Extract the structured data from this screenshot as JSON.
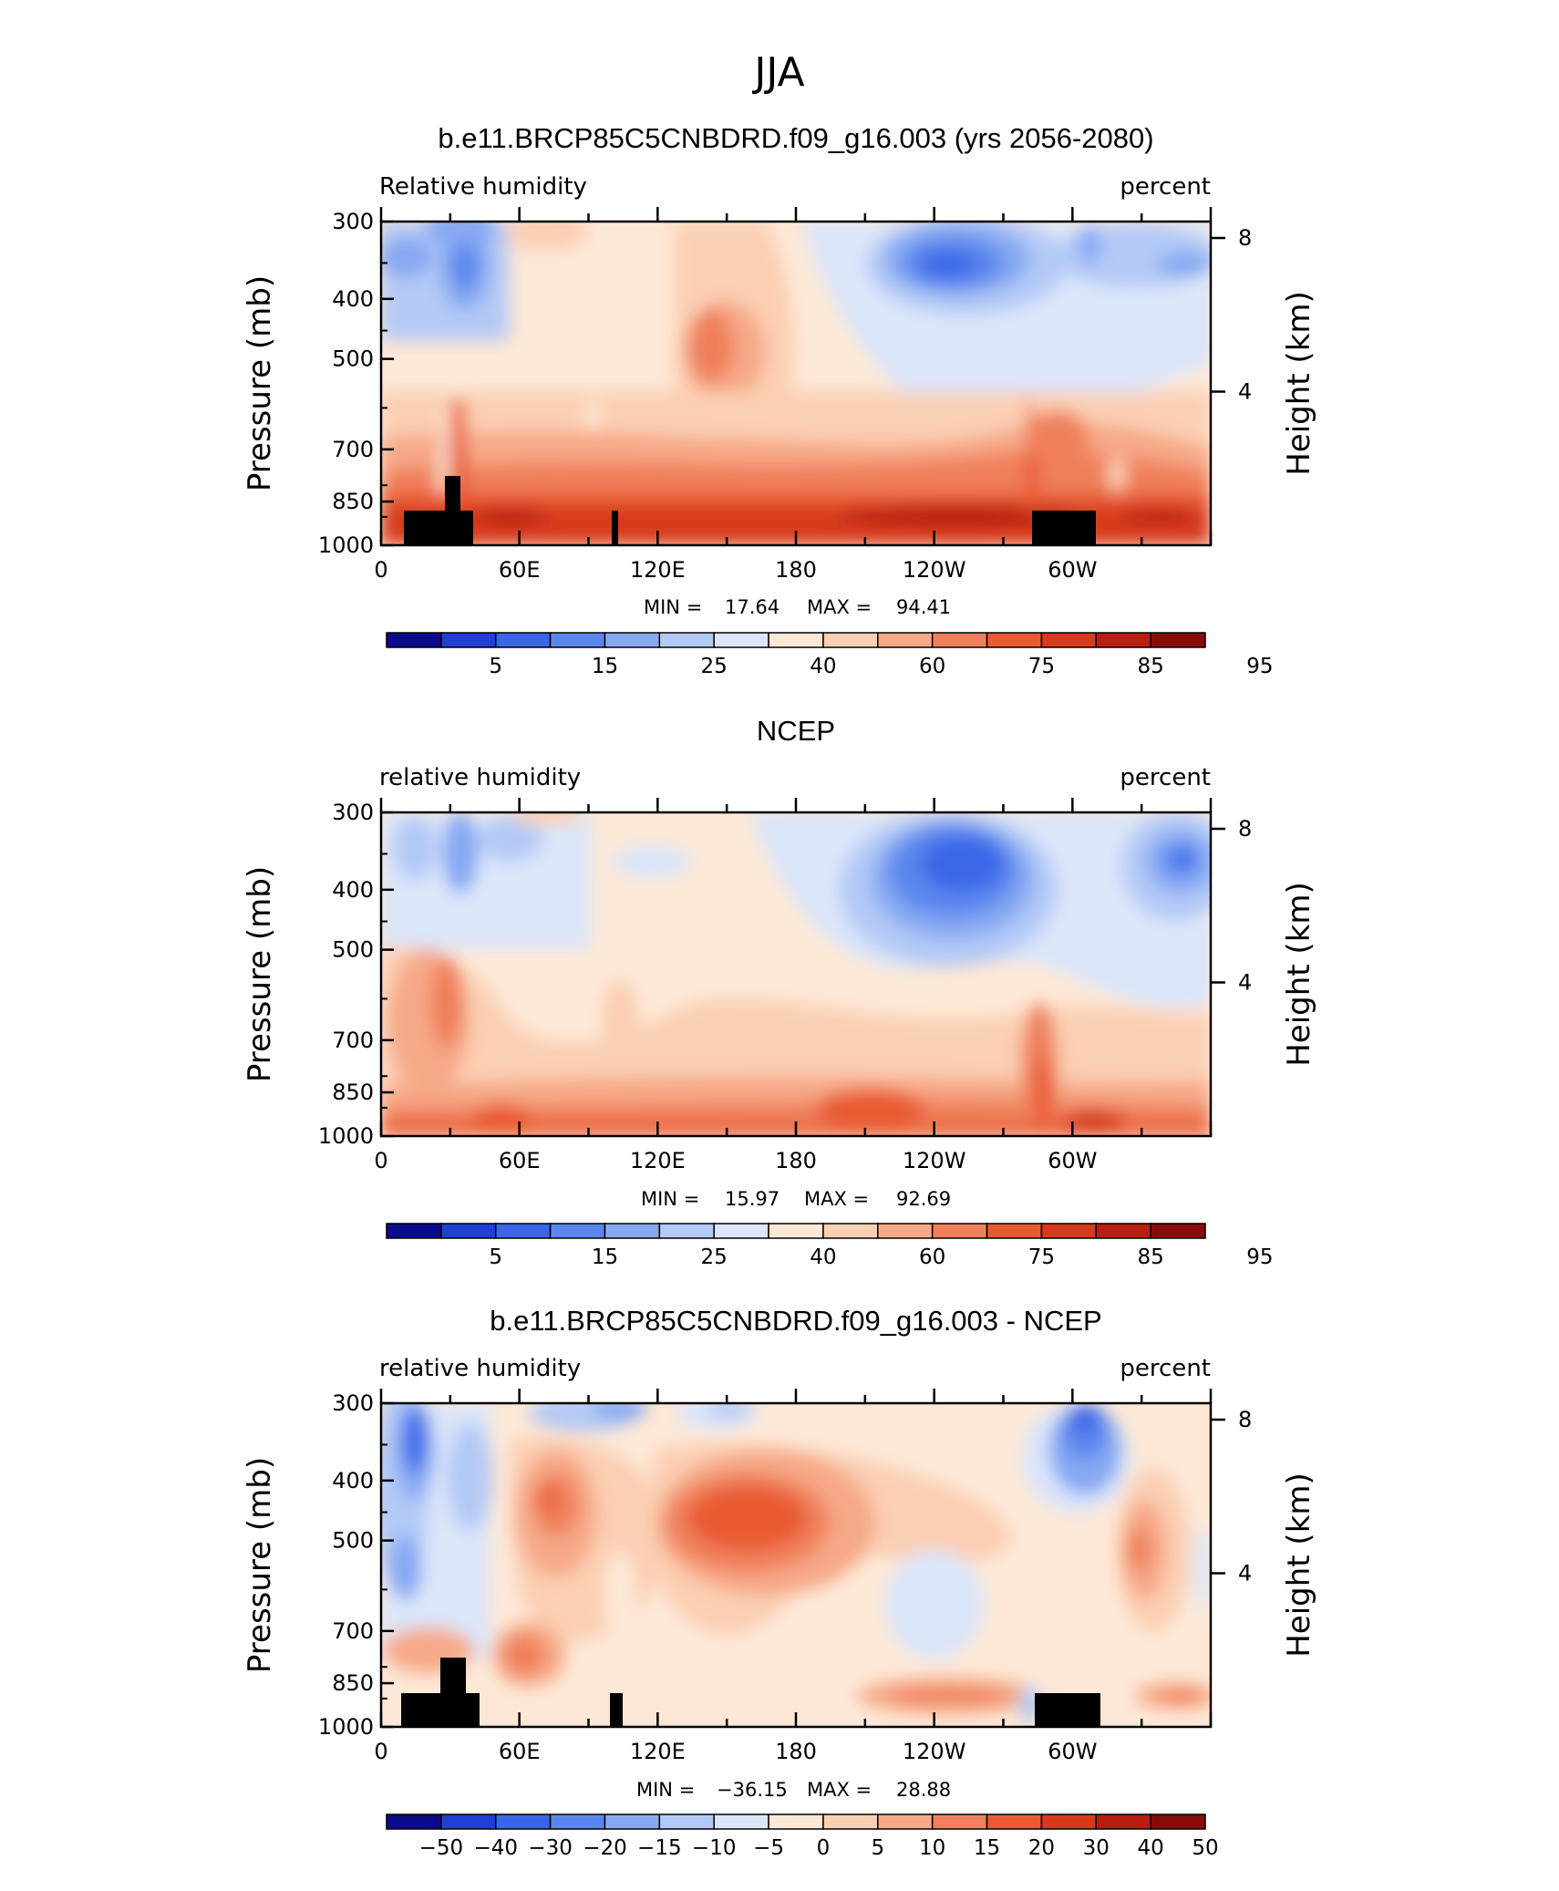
{
  "page_title": "JJA",
  "chart_data": [
    {
      "type": "heatmap",
      "title": "b.e11.BRCP85C5CNBDRD.f09_g16.003 (yrs 2056-2080)",
      "left_label": "Relative humidity",
      "right_label": "percent",
      "ylabel": "Pressure (mb)",
      "ylabel_right": "Height (km)",
      "y_ticks": [
        "300",
        "400",
        "500",
        "700",
        "850",
        "1000"
      ],
      "y_right_ticks": [
        "8",
        "4"
      ],
      "x_ticks": [
        "0",
        "60E",
        "120E",
        "180",
        "120W",
        "60W"
      ],
      "stats": {
        "min_label": "MIN =",
        "min": "17.64",
        "max_label": "MAX =",
        "max": "94.41"
      },
      "colorbar_labels": [
        "5",
        "15",
        "25",
        "40",
        "60",
        "75",
        "85",
        "95"
      ],
      "terrain": true
    },
    {
      "type": "heatmap",
      "title": "NCEP",
      "left_label": "relative humidity",
      "right_label": "percent",
      "ylabel": "Pressure (mb)",
      "ylabel_right": "Height (km)",
      "y_ticks": [
        "300",
        "400",
        "500",
        "700",
        "850",
        "1000"
      ],
      "y_right_ticks": [
        "8",
        "4"
      ],
      "x_ticks": [
        "0",
        "60E",
        "120E",
        "180",
        "120W",
        "60W"
      ],
      "stats": {
        "min_label": "MIN =",
        "min": "15.97",
        "max_label": "MAX =",
        "max": "92.69"
      },
      "colorbar_labels": [
        "5",
        "15",
        "25",
        "40",
        "60",
        "75",
        "85",
        "95"
      ],
      "terrain": false
    },
    {
      "type": "heatmap",
      "title": "b.e11.BRCP85C5CNBDRD.f09_g16.003 - NCEP",
      "left_label": "relative humidity",
      "right_label": "percent",
      "ylabel": "Pressure (mb)",
      "ylabel_right": "Height (km)",
      "y_ticks": [
        "300",
        "400",
        "500",
        "700",
        "850",
        "1000"
      ],
      "y_right_ticks": [
        "8",
        "4"
      ],
      "x_ticks": [
        "0",
        "60E",
        "120E",
        "180",
        "120W",
        "60W"
      ],
      "stats": {
        "min_label": "MIN =",
        "min": "−36.15",
        "max_label": "MAX =",
        "max": "28.88"
      },
      "colorbar_labels": [
        "−50",
        "−40",
        "−30",
        "−20",
        "−15",
        "−10",
        "−5",
        "0",
        "5",
        "10",
        "15",
        "20",
        "30",
        "40",
        "50"
      ],
      "terrain": true
    }
  ],
  "colors": {
    "scale": [
      "#0a0a8c",
      "#1f3fd6",
      "#3a66e8",
      "#5a86ee",
      "#86a9f2",
      "#b3c9f6",
      "#dbe6fa",
      "#fde8d6",
      "#fbcfb3",
      "#f6a987",
      "#f0805b",
      "#e95a33",
      "#d73a1c",
      "#b81f10",
      "#8a0c08"
    ]
  }
}
